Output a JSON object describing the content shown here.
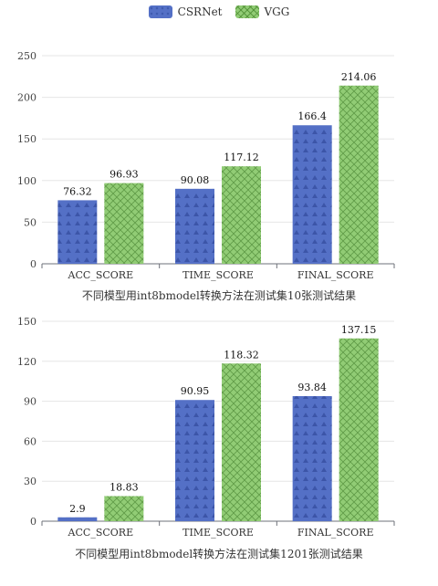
{
  "legend": {
    "items": [
      {
        "name": "CSRNet",
        "color": "#5470c6"
      },
      {
        "name": "VGG",
        "color": "#91cc75"
      }
    ],
    "placement": "top-center"
  },
  "chart_data": [
    {
      "type": "bar",
      "title": "不同模型用int8bmodel转换方法在测试集10张测试结果",
      "categories": [
        "ACC_SCORE",
        "TIME_SCORE",
        "FINAL_SCORE"
      ],
      "series": [
        {
          "name": "CSRNet",
          "values": [
            76.32,
            90.08,
            166.4
          ],
          "color": "#5470c6"
        },
        {
          "name": "VGG",
          "values": [
            96.93,
            117.12,
            214.06
          ],
          "color": "#91cc75"
        }
      ],
      "data_labels": [
        [
          "76.32",
          "90.08",
          "166.4"
        ],
        [
          "96.93",
          "117.12",
          "214.06"
        ]
      ],
      "ylim": [
        0,
        250
      ],
      "yticks": [
        0,
        50,
        100,
        150,
        200,
        250
      ],
      "grid": true
    },
    {
      "type": "bar",
      "title": "不同模型用int8bmodel转换方法在测试集1201张测试结果",
      "categories": [
        "ACC_SCORE",
        "TIME_SCORE",
        "FINAL_SCORE"
      ],
      "series": [
        {
          "name": "CSRNet",
          "values": [
            2.9,
            90.95,
            93.84
          ],
          "color": "#5470c6"
        },
        {
          "name": "VGG",
          "values": [
            18.83,
            118.32,
            137.15
          ],
          "color": "#91cc75"
        }
      ],
      "data_labels": [
        [
          "2.9",
          "90.95",
          "93.84"
        ],
        [
          "18.83",
          "118.32",
          "137.15"
        ]
      ],
      "ylim": [
        0,
        150
      ],
      "yticks": [
        0,
        30,
        60,
        90,
        120,
        150
      ],
      "grid": true
    }
  ]
}
